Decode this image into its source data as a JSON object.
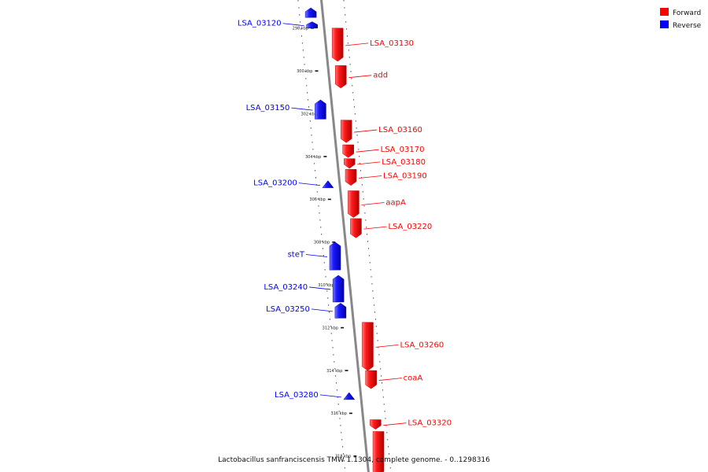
{
  "caption": "Lactobacillus sanfranciscensis TMW 1.1304, complete genome. - 0..1298316",
  "legend": [
    {
      "label": "Forward",
      "color": "#ff0000"
    },
    {
      "label": "Reverse",
      "color": "#0000ff"
    }
  ],
  "colors": {
    "forward": "#ff0000",
    "reverse": "#0000ff",
    "backbone": "#888888"
  },
  "ticks": [
    {
      "kbp": 298,
      "label": "298 kbp"
    },
    {
      "kbp": 300,
      "label": "300 kbp"
    },
    {
      "kbp": 302,
      "label": "302 kbp"
    },
    {
      "kbp": 304,
      "label": "304 kbp"
    },
    {
      "kbp": 306,
      "label": "306 kbp"
    },
    {
      "kbp": 308,
      "label": "308 kbp"
    },
    {
      "kbp": 310,
      "label": "310 kbp"
    },
    {
      "kbp": 312,
      "label": "312 kbp"
    },
    {
      "kbp": 314,
      "label": "314 kbp"
    },
    {
      "kbp": 316,
      "label": "316 kbp"
    },
    {
      "kbp": 318,
      "label": "318 kbp"
    }
  ],
  "genes": [
    {
      "name": "",
      "strand": "reverse",
      "start": 297.05,
      "end": 297.5
    },
    {
      "name": "LSA_03120",
      "strand": "reverse",
      "start": 297.7,
      "end": 298.0
    },
    {
      "name": "LSA_03130",
      "strand": "forward",
      "start": 298.0,
      "end": 299.55
    },
    {
      "name": "add",
      "strand": "forward",
      "start": 299.75,
      "end": 300.8
    },
    {
      "name": "LSA_03150",
      "strand": "reverse",
      "start": 301.35,
      "end": 302.25
    },
    {
      "name": "LSA_03160",
      "strand": "forward",
      "start": 302.3,
      "end": 303.35
    },
    {
      "name": "LSA_03170",
      "strand": "forward",
      "start": 303.45,
      "end": 304.05
    },
    {
      "name": "LSA_03180",
      "strand": "forward",
      "start": 304.1,
      "end": 304.55
    },
    {
      "name": "LSA_03190",
      "strand": "forward",
      "start": 304.6,
      "end": 305.35
    },
    {
      "name": "LSA_03200",
      "strand": "reverse",
      "start": 305.2,
      "end": 305.42
    },
    {
      "name": "aapA",
      "strand": "forward",
      "start": 305.6,
      "end": 306.85
    },
    {
      "name": "LSA_03220",
      "strand": "forward",
      "start": 306.9,
      "end": 307.8
    },
    {
      "name": "steT",
      "strand": "reverse",
      "start": 308.0,
      "end": 309.3
    },
    {
      "name": "LSA_03240",
      "strand": "reverse",
      "start": 309.55,
      "end": 310.8
    },
    {
      "name": "LSA_03250",
      "strand": "reverse",
      "start": 310.85,
      "end": 311.55
    },
    {
      "name": "LSA_03260",
      "strand": "forward",
      "start": 311.75,
      "end": 314.0
    },
    {
      "name": "coaA",
      "strand": "forward",
      "start": 314.0,
      "end": 314.85
    },
    {
      "name": "LSA_03280",
      "strand": "reverse",
      "start": 315.1,
      "end": 315.32
    },
    {
      "name": "LSA_03320",
      "strand": "forward",
      "start": 316.3,
      "end": 316.75
    },
    {
      "name": "",
      "strand": "forward",
      "start": 316.85,
      "end": 318.9
    }
  ]
}
